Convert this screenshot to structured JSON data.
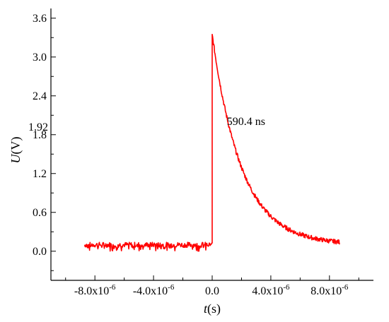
{
  "chart_data": {
    "type": "line",
    "title": "",
    "xlabel": {
      "italic": "t",
      "rest": "(s)"
    },
    "ylabel": {
      "italic": "U",
      "rest": "(V)"
    },
    "xlim": [
      -1.1e-05,
      1.1e-05
    ],
    "ylim": [
      -0.45,
      3.75
    ],
    "x_ticks": [
      {
        "value": -8e-06,
        "mant": "-8.0x10",
        "exp": "-6"
      },
      {
        "value": -4e-06,
        "mant": "-4.0x10",
        "exp": "-6"
      },
      {
        "value": 0,
        "mant": "0.0",
        "exp": ""
      },
      {
        "value": 4e-06,
        "mant": "4.0x10",
        "exp": "-6"
      },
      {
        "value": 8e-06,
        "mant": "8.0x10",
        "exp": "-6"
      }
    ],
    "y_ticks": [
      {
        "value": 0.0,
        "label": "0.0"
      },
      {
        "value": 0.6,
        "label": "0.6"
      },
      {
        "value": 1.2,
        "label": "1.2"
      },
      {
        "value": 1.8,
        "label": "1.8"
      },
      {
        "value": 2.4,
        "label": "2.4"
      },
      {
        "value": 3.0,
        "label": "3.0"
      },
      {
        "value": 3.6,
        "label": "3.6"
      }
    ],
    "marker_label": {
      "y": 1.92,
      "text": "1.92"
    },
    "annotation": {
      "text": "590.4 ns",
      "x": 1e-06,
      "y": 1.95
    },
    "grid": false,
    "series": [
      {
        "color": "#ff0000",
        "baseline": 0.1,
        "peak": 3.35,
        "tau": 2e-06,
        "x_start": -8.7e-06,
        "x_end": 8.7e-06,
        "x": [
          -8.7e-06,
          -1e-08,
          0,
          3e-07,
          6e-07,
          1e-06,
          1.5e-06,
          2e-06,
          2.5e-06,
          3e-06,
          3.5e-06,
          4e-06,
          4.5e-06,
          5e-06,
          5.5e-06,
          6e-06,
          6.5e-06,
          7e-06,
          7.5e-06,
          8e-06,
          8.7e-06
        ],
        "y": [
          0.1,
          0.1,
          3.35,
          2.92,
          2.56,
          2.17,
          1.76,
          1.42,
          1.15,
          0.93,
          0.76,
          0.62,
          0.51,
          0.43,
          0.36,
          0.28,
          0.22,
          0.18,
          0.15,
          0.13,
          0.12
        ]
      }
    ]
  }
}
